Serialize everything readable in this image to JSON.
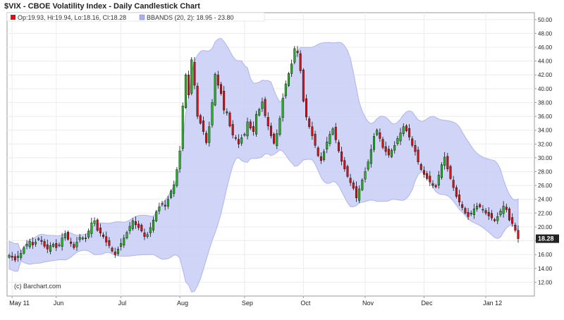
{
  "chart_data": {
    "type": "candlestick",
    "title": "$VIX - CBOE Volatility Index - Daily Candlestick Chart",
    "legend": [
      {
        "label": "Op:19.93, Hi:19.94, Lo:18.16, Cl:18.28",
        "color": "#dd1111"
      },
      {
        "label": "BBANDS (20, 2): 18.95 - 23.80",
        "color": "#aab0ee"
      }
    ],
    "last_price_label": "18.28",
    "credit": "(c) Barchart.com",
    "ylim": [
      10,
      51
    ],
    "y_ticks": [
      "12.00",
      "14.00",
      "16.00",
      "18.00",
      "20.00",
      "22.00",
      "24.00",
      "26.00",
      "28.00",
      "30.00",
      "32.00",
      "34.00",
      "36.00",
      "38.00",
      "40.00",
      "42.00",
      "44.00",
      "46.00",
      "48.00",
      "50.00"
    ],
    "x_ticks": [
      {
        "label": "May 11",
        "index": 1
      },
      {
        "label": "Jun",
        "index": 16
      },
      {
        "label": "Jul",
        "index": 38
      },
      {
        "label": "Aug",
        "index": 58
      },
      {
        "label": "Sep",
        "index": 80
      },
      {
        "label": "Oct",
        "index": 100
      },
      {
        "label": "Nov",
        "index": 121
      },
      {
        "label": "Dec",
        "index": 141
      },
      {
        "label": "Jan 12",
        "index": 162
      }
    ],
    "up_color": "#22bb22",
    "down_color": "#dd1111",
    "band_color": "#c8ccf6",
    "closes": [
      15.9,
      15.6,
      15.2,
      15.8,
      16.2,
      17.0,
      17.5,
      17.9,
      17.4,
      17.8,
      18.3,
      17.9,
      17.2,
      16.8,
      17.3,
      17.5,
      17.0,
      17.4,
      18.4,
      19.0,
      18.2,
      17.6,
      17.0,
      17.8,
      18.5,
      18.4,
      18.3,
      19.4,
      20.6,
      20.9,
      19.5,
      19.1,
      18.6,
      17.8,
      17.3,
      16.5,
      16.0,
      16.8,
      17.6,
      18.4,
      19.2,
      20.1,
      20.9,
      20.3,
      19.9,
      19.4,
      18.6,
      18.9,
      19.9,
      21.0,
      22.2,
      22.9,
      23.4,
      23.0,
      24.0,
      25.2,
      26.1,
      28.3,
      31.0,
      37.5,
      42.0,
      39.1,
      44.2,
      40.5,
      36.0,
      35.0,
      33.8,
      32.2,
      34.5,
      38.0,
      42.1,
      40.5,
      39.3,
      36.9,
      36.5,
      34.6,
      33.3,
      32.8,
      32.0,
      32.9,
      33.4,
      35.2,
      34.3,
      33.8,
      36.3,
      37.0,
      38.1,
      36.1,
      34.6,
      33.2,
      32.1,
      33.5,
      35.7,
      38.6,
      40.7,
      42.2,
      43.6,
      45.8,
      45.2,
      42.6,
      38.2,
      35.9,
      34.5,
      33.2,
      31.8,
      30.3,
      29.6,
      30.9,
      32.3,
      33.4,
      34.2,
      32.6,
      31.0,
      29.5,
      28.4,
      27.3,
      26.4,
      25.6,
      24.2,
      25.5,
      26.8,
      28.0,
      29.4,
      31.2,
      33.1,
      34.0,
      32.8,
      31.5,
      30.9,
      30.4,
      31.1,
      31.8,
      32.8,
      33.6,
      34.5,
      33.9,
      33.0,
      31.8,
      30.9,
      29.4,
      28.3,
      27.6,
      27.0,
      26.5,
      26.0,
      25.8,
      27.5,
      29.0,
      30.1,
      28.4,
      27.0,
      25.7,
      24.4,
      23.6,
      22.8,
      22.0,
      21.5,
      22.0,
      22.6,
      23.0,
      22.9,
      22.5,
      22.0,
      21.6,
      21.3,
      20.9,
      21.5,
      22.3,
      23.0,
      22.5,
      21.0,
      20.5,
      19.5,
      18.3
    ]
  }
}
